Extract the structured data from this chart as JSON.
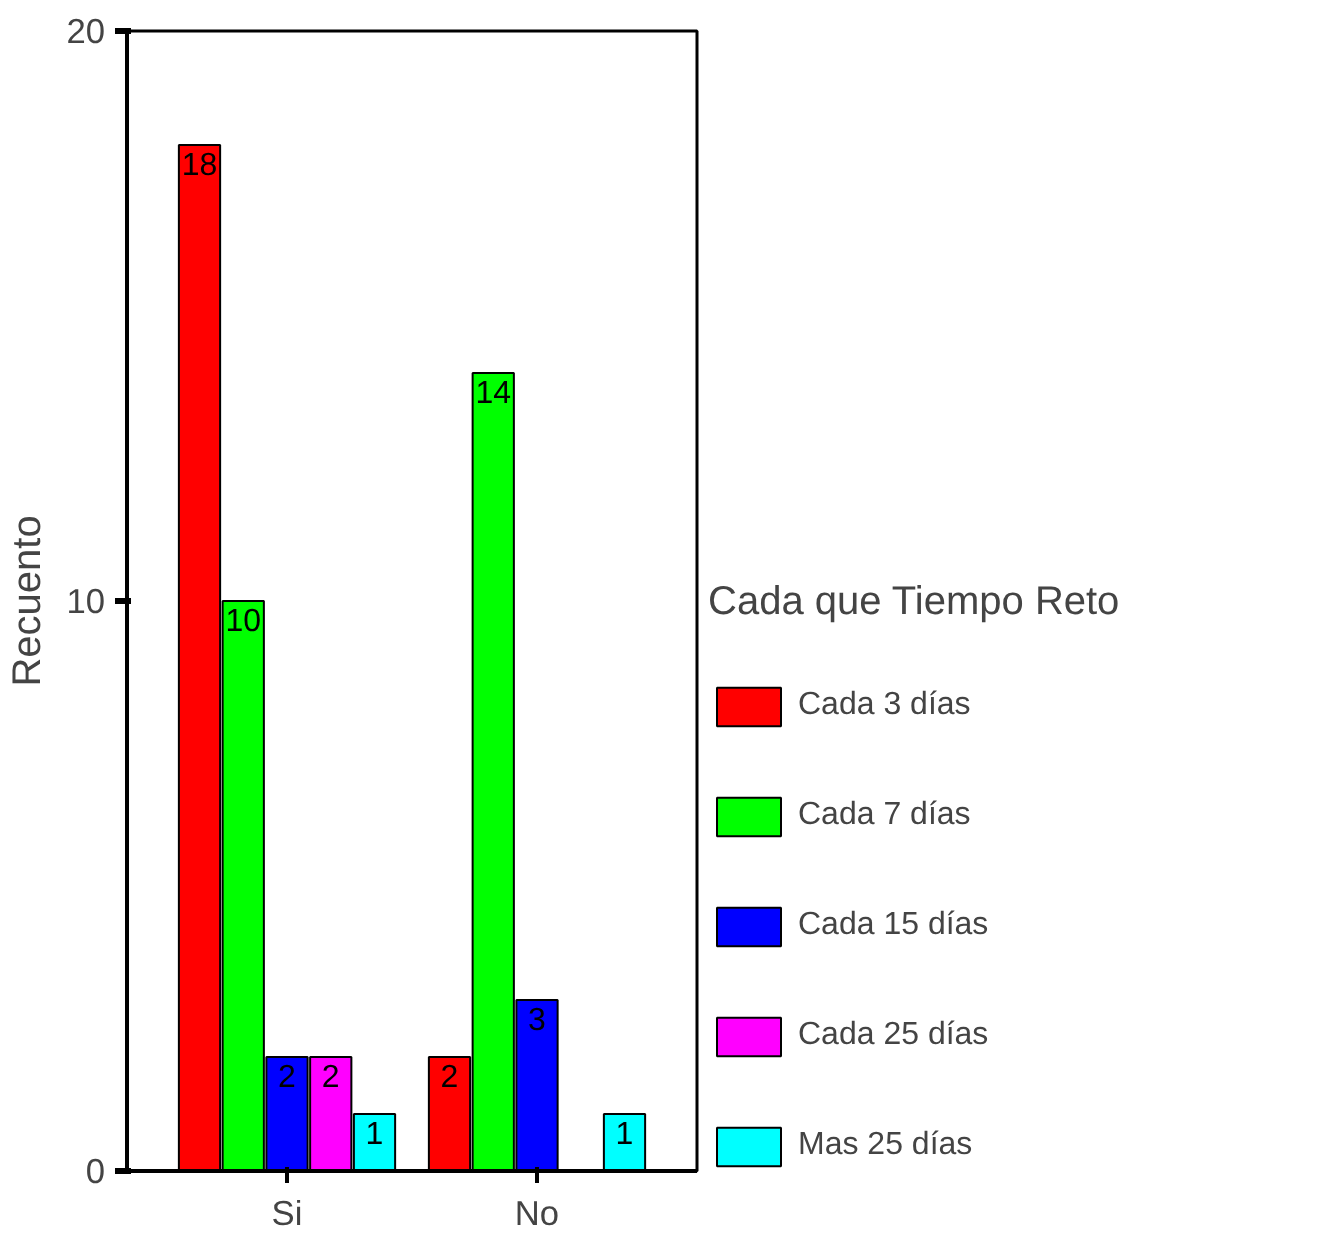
{
  "chart_data": {
    "type": "bar",
    "ylabel": "Recuento",
    "legend_title": "Cada que Tiempo Reto",
    "categories": [
      "Si",
      "No"
    ],
    "series": [
      {
        "name": "Cada 3 días",
        "color": "#ff0000",
        "values": [
          18,
          2
        ]
      },
      {
        "name": "Cada 7 días",
        "color": "#00ff00",
        "values": [
          10,
          14
        ]
      },
      {
        "name": "Cada 15 días",
        "color": "#0000ff",
        "values": [
          2,
          3
        ]
      },
      {
        "name": "Cada 25 días",
        "color": "#ff00ff",
        "values": [
          2,
          null
        ]
      },
      {
        "name": "Mas 25 días",
        "color": "#00ffff",
        "values": [
          1,
          1
        ]
      }
    ],
    "ylim": [
      0,
      20
    ],
    "yticks": [
      0,
      10,
      20
    ],
    "legend": "right",
    "data_labels": true
  }
}
